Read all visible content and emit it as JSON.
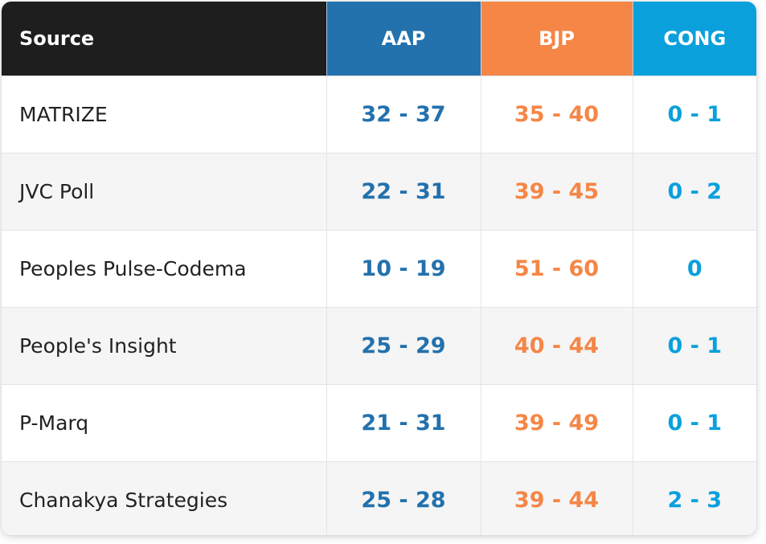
{
  "colors": {
    "source_header": "#1e1e1e",
    "aap": "#2371ad",
    "bjp": "#f58646",
    "cong": "#0aa0dc"
  },
  "headers": {
    "source": "Source",
    "aap": "AAP",
    "bjp": "BJP",
    "cong": "CONG"
  },
  "rows": [
    {
      "source": "MATRIZE",
      "aap": "32 - 37",
      "bjp": "35 - 40",
      "cong": "0 - 1"
    },
    {
      "source": "JVC Poll",
      "aap": "22 - 31",
      "bjp": "39 - 45",
      "cong": "0 - 2"
    },
    {
      "source": "Peoples Pulse-Codema",
      "aap": "10 - 19",
      "bjp": "51 - 60",
      "cong": "0"
    },
    {
      "source": "People's Insight",
      "aap": "25 - 29",
      "bjp": "40 - 44",
      "cong": "0 - 1"
    },
    {
      "source": "P-Marq",
      "aap": "21 - 31",
      "bjp": "39 - 49",
      "cong": "0 - 1"
    },
    {
      "source": "Chanakya Strategies",
      "aap": "25 - 28",
      "bjp": "39 - 44",
      "cong": "2 - 3"
    }
  ]
}
